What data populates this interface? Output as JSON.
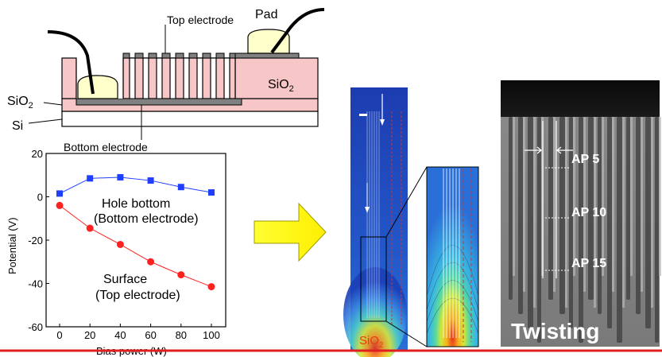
{
  "device_schematic": {
    "label_top_electrode": "Top electrode",
    "label_pad": "Pad",
    "label_sio2_right": "SiO",
    "label_sio2_right_sub": "2",
    "label_sio2_left": "SiO",
    "label_sio2_left_sub": "2",
    "label_si": "Si",
    "label_bottom_electrode": "Bottom electrode"
  },
  "chart_data": {
    "type": "line",
    "xlabel": "Bias power (W)",
    "ylabel": "Potential (V)",
    "xlim": [
      0,
      100
    ],
    "ylim": [
      -60,
      20
    ],
    "x_ticks": [
      "0",
      "20",
      "40",
      "60",
      "80",
      "100"
    ],
    "y_ticks": [
      "20",
      "0",
      "-20",
      "-40",
      "-60"
    ],
    "x": [
      0,
      20,
      40,
      60,
      80,
      100
    ],
    "series": [
      {
        "name": "Hole bottom",
        "name_line2": "(Bottom electrode)",
        "color": "#1f3fff",
        "marker": "square",
        "values": [
          1.5,
          8.5,
          9,
          7.5,
          4.5,
          2
        ]
      },
      {
        "name": "Surface",
        "name_line2": "(Top electrode)",
        "color": "#ff2020",
        "marker": "circle",
        "values": [
          -4,
          -14.5,
          -22,
          -30,
          -36,
          -41.5
        ]
      }
    ]
  },
  "simulation": {
    "label_sio2": "SiO",
    "label_sio2_sub": "2",
    "colors": {
      "background": "#1b3fb8",
      "hot": "#e83a1a"
    }
  },
  "sem_image": {
    "labels": [
      "AP 5",
      "AP 10",
      "AP 15"
    ],
    "caption": "Twisting"
  },
  "colors": {
    "accent_line": "#e02020",
    "arrow": "#ffff00",
    "sio2_fill": "#f7c7c7",
    "pad_fill": "#ffffcc"
  }
}
